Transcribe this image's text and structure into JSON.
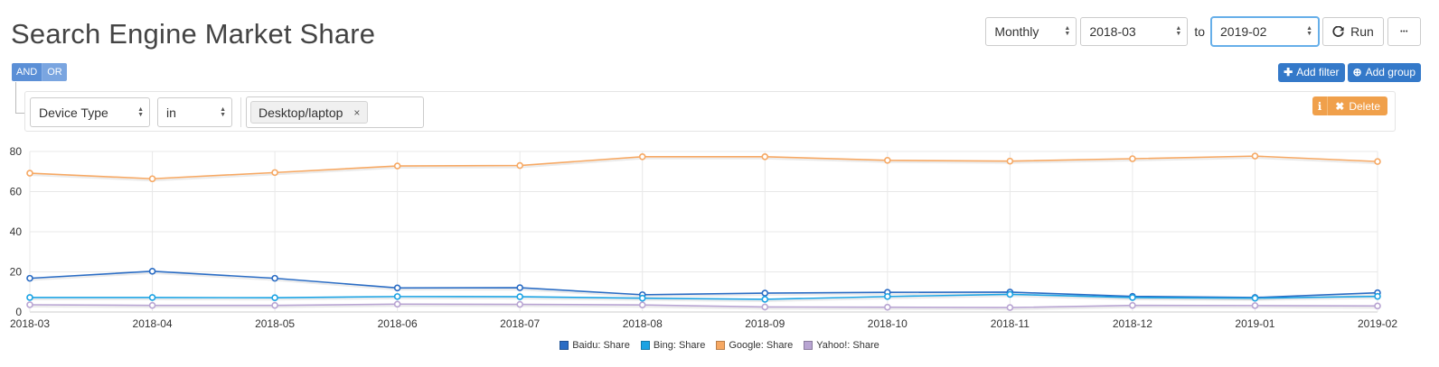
{
  "page": {
    "title": "Search Engine Market Share"
  },
  "controls": {
    "interval": "Monthly",
    "from": "2018-03",
    "to_label": "to",
    "to": "2019-02",
    "run_label": "Run",
    "run_icon": "refresh-icon",
    "more_label": "•••"
  },
  "filters": {
    "and_label": "AND",
    "or_label": "OR",
    "add_filter_label": "Add filter",
    "add_group_label": "Add group",
    "field": "Device Type",
    "operator": "in",
    "value_tag": "Desktop/laptop",
    "value_tag_remove": "×",
    "info_label": "ℹ",
    "delete_label": "Delete"
  },
  "chart_data": {
    "type": "line",
    "title": "",
    "xlabel": "",
    "ylabel": "",
    "ylim": [
      0,
      80
    ],
    "yticks": [
      0,
      20,
      40,
      60,
      80
    ],
    "grid": true,
    "legend_position": "bottom",
    "categories": [
      "2018-03",
      "2018-04",
      "2018-05",
      "2018-06",
      "2018-07",
      "2018-08",
      "2018-09",
      "2018-10",
      "2018-11",
      "2018-12",
      "2019-01",
      "2019-02"
    ],
    "series": [
      {
        "name": "Baidu: Share",
        "color": "#2a6cc4",
        "values": [
          16.8,
          20.3,
          16.8,
          12.0,
          12.1,
          8.6,
          9.4,
          9.8,
          9.9,
          7.8,
          7.2,
          9.6
        ]
      },
      {
        "name": "Bing: Share",
        "color": "#1ba3e3",
        "values": [
          7.2,
          7.2,
          7.1,
          7.7,
          7.6,
          6.9,
          6.3,
          7.7,
          8.8,
          7.2,
          6.9,
          7.8
        ]
      },
      {
        "name": "Google: Share",
        "color": "#f6a863",
        "values": [
          69.2,
          66.4,
          69.5,
          72.8,
          73.0,
          77.4,
          77.4,
          75.6,
          75.2,
          76.4,
          77.7,
          75.0
        ]
      },
      {
        "name": "Yahoo!: Share",
        "color": "#b8a4d2",
        "values": [
          3.6,
          3.3,
          3.3,
          3.9,
          3.8,
          3.5,
          2.5,
          2.4,
          2.2,
          3.3,
          3.2,
          3.0
        ]
      }
    ]
  }
}
